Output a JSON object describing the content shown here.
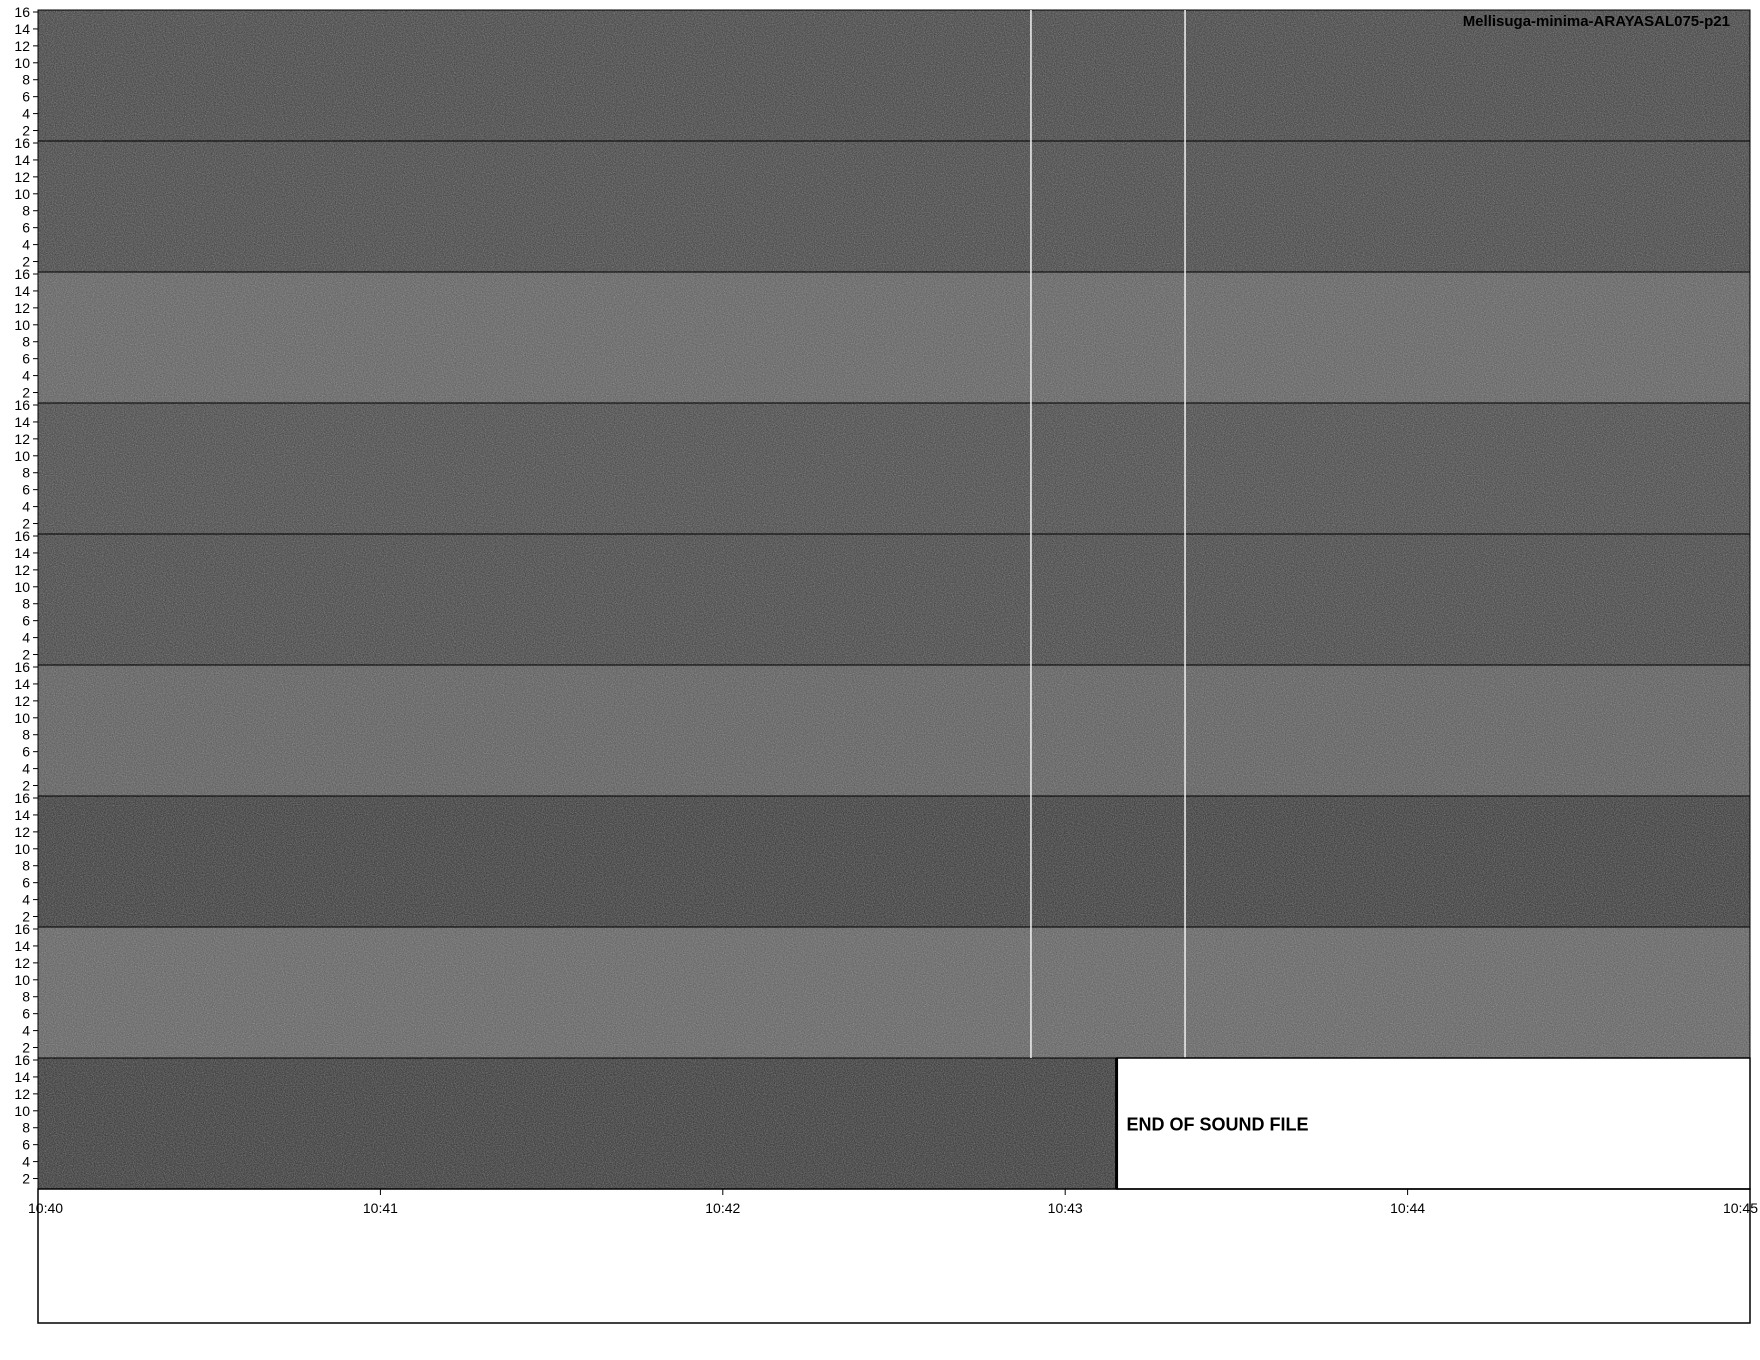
{
  "chart_data": {
    "type": "heatmap",
    "title": "Mellisuga-minima-ARAYASAL075-p21",
    "frequency_ticks": [
      "2",
      "4",
      "6",
      "8",
      "10",
      "12",
      "14",
      "16"
    ],
    "frequency_range": [
      1,
      16
    ],
    "time_ticks": [
      "10:40",
      "10:41",
      "10:42",
      "10:43",
      "10:44",
      "10:45"
    ],
    "time_range": [
      0,
      5
    ],
    "rows": [
      {
        "time_start": 0,
        "time_end": 5,
        "shade": "#3a3a3a"
      },
      {
        "time_start": 5,
        "time_end": 10,
        "shade": "#3c3c3c"
      },
      {
        "time_start": 10,
        "time_end": 15,
        "shade": "#5a5a5a"
      },
      {
        "time_start": 15,
        "time_end": 20,
        "shade": "#404040"
      },
      {
        "time_start": 20,
        "time_end": 25,
        "shade": "#3c3c3c"
      },
      {
        "time_start": 25,
        "time_end": 30,
        "shade": "#555555"
      },
      {
        "time_start": 30,
        "time_end": 35,
        "shade": "#303030"
      },
      {
        "time_start": 35,
        "time_end": 40,
        "shade": "#5c5c5c"
      },
      {
        "time_start": 40,
        "time_end": 43.15,
        "shade": "#2e2e2e"
      }
    ],
    "marker_times": [
      2.9,
      3.35
    ],
    "end_of_file_time": 3.15,
    "end_label": "END OF SOUND FILE"
  }
}
